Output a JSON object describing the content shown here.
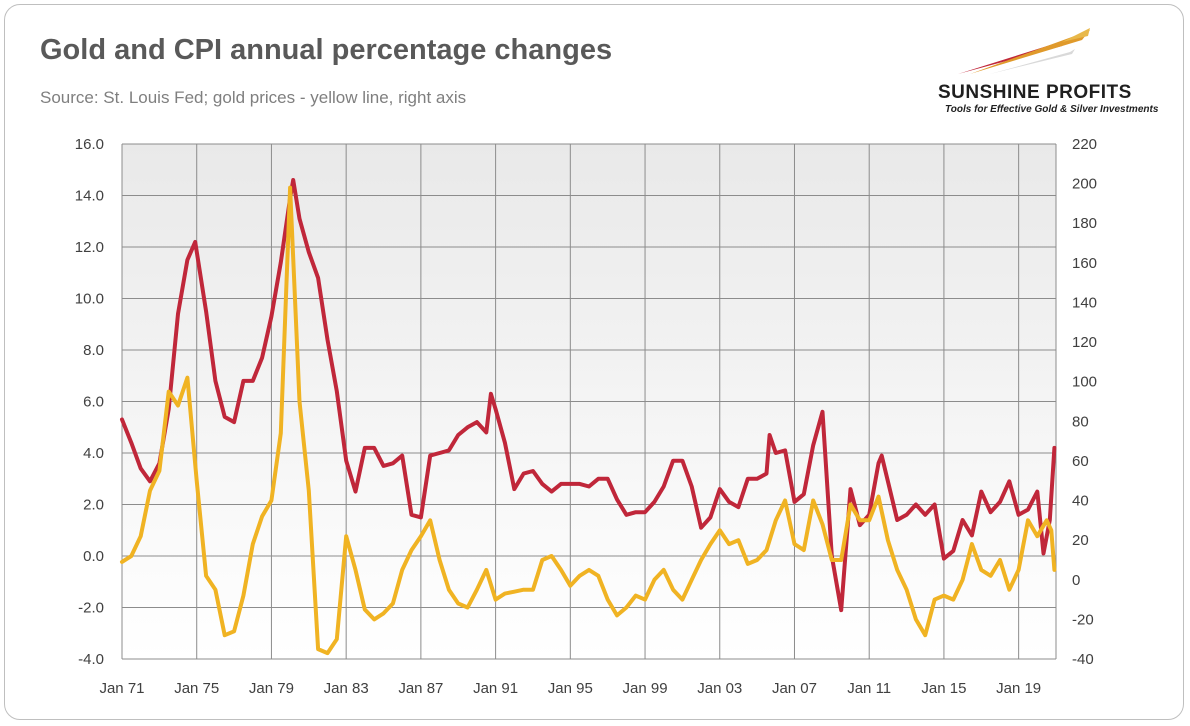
{
  "title": "Gold and CPI annual percentage changes",
  "subtitle": "Source: St. Louis Fed; gold prices - yellow line, right axis",
  "logo": {
    "name": "SUNSHINE PROFITS",
    "tagline": "Tools for Effective Gold & Silver Investments"
  },
  "colors": {
    "cpi": "#c0273a",
    "gold": "#f0b323",
    "grid": "#8c8c8c",
    "plot_bg_top": "#ebebeb",
    "plot_bg_bottom": "#ffffff"
  },
  "chart_data": {
    "type": "line",
    "title": "Gold and CPI annual percentage changes",
    "xlabel": "",
    "ylabel_left": "",
    "ylabel_right": "",
    "x_range": [
      "Jan 71",
      "Dec 20"
    ],
    "x_ticks": [
      "Jan 71",
      "Jan 75",
      "Jan 79",
      "Jan 83",
      "Jan 87",
      "Jan 91",
      "Jan 95",
      "Jan 99",
      "Jan 03",
      "Jan 07",
      "Jan 11",
      "Jan 15",
      "Jan 19"
    ],
    "y_left": {
      "range": [
        -4,
        16
      ],
      "ticks": [
        "-4.0",
        "-2.0",
        "0.0",
        "2.0",
        "4.0",
        "6.0",
        "8.0",
        "10.0",
        "12.0",
        "14.0",
        "16.0"
      ]
    },
    "y_right": {
      "range": [
        -40,
        220
      ],
      "ticks": [
        "-40",
        "-20",
        "0",
        "20",
        "40",
        "60",
        "80",
        "100",
        "120",
        "140",
        "160",
        "180",
        "200",
        "220"
      ]
    },
    "grid": true,
    "legend": "none",
    "series": [
      {
        "axis": "left",
        "color": "#c0273a",
        "points": [
          [
            "Jan 71",
            5.3
          ],
          [
            "Jul 71",
            4.4
          ],
          [
            "Jan 72",
            3.4
          ],
          [
            "Jul 72",
            2.9
          ],
          [
            "Jan 73",
            3.6
          ],
          [
            "Jul 73",
            5.7
          ],
          [
            "Jan 74",
            9.4
          ],
          [
            "Jul 74",
            11.5
          ],
          [
            "Dec 74",
            12.2
          ],
          [
            "Jul 75",
            9.5
          ],
          [
            "Jan 76",
            6.8
          ],
          [
            "Jul 76",
            5.4
          ],
          [
            "Jan 77",
            5.2
          ],
          [
            "Jul 77",
            6.8
          ],
          [
            "Jan 78",
            6.8
          ],
          [
            "Jul 78",
            7.7
          ],
          [
            "Jan 79",
            9.3
          ],
          [
            "Jul 79",
            11.4
          ],
          [
            "Jan 80",
            13.9
          ],
          [
            "Mar 80",
            14.6
          ],
          [
            "Jul 80",
            13.1
          ],
          [
            "Jan 81",
            11.8
          ],
          [
            "Jul 81",
            10.8
          ],
          [
            "Jan 82",
            8.4
          ],
          [
            "Jul 82",
            6.4
          ],
          [
            "Jan 83",
            3.7
          ],
          [
            "Jul 83",
            2.5
          ],
          [
            "Jan 84",
            4.2
          ],
          [
            "Jul 84",
            4.2
          ],
          [
            "Jan 85",
            3.5
          ],
          [
            "Jul 85",
            3.6
          ],
          [
            "Jan 86",
            3.9
          ],
          [
            "Jul 86",
            1.6
          ],
          [
            "Jan 87",
            1.5
          ],
          [
            "Jul 87",
            3.9
          ],
          [
            "Jan 88",
            4.0
          ],
          [
            "Jul 88",
            4.1
          ],
          [
            "Jan 89",
            4.7
          ],
          [
            "Jul 89",
            5.0
          ],
          [
            "Jan 90",
            5.2
          ],
          [
            "Jul 90",
            4.8
          ],
          [
            "Oct 90",
            6.3
          ],
          [
            "Jan 91",
            5.7
          ],
          [
            "Jul 91",
            4.4
          ],
          [
            "Jan 92",
            2.6
          ],
          [
            "Jul 92",
            3.2
          ],
          [
            "Jan 93",
            3.3
          ],
          [
            "Jul 93",
            2.8
          ],
          [
            "Jan 94",
            2.5
          ],
          [
            "Jul 94",
            2.8
          ],
          [
            "Jan 95",
            2.8
          ],
          [
            "Jul 95",
            2.8
          ],
          [
            "Jan 96",
            2.7
          ],
          [
            "Jul 96",
            3.0
          ],
          [
            "Jan 97",
            3.0
          ],
          [
            "Jul 97",
            2.2
          ],
          [
            "Jan 98",
            1.6
          ],
          [
            "Jul 98",
            1.7
          ],
          [
            "Jan 99",
            1.7
          ],
          [
            "Jul 99",
            2.1
          ],
          [
            "Jan 00",
            2.7
          ],
          [
            "Jul 00",
            3.7
          ],
          [
            "Jan 01",
            3.7
          ],
          [
            "Jul 01",
            2.7
          ],
          [
            "Jan 02",
            1.1
          ],
          [
            "Jul 02",
            1.5
          ],
          [
            "Jan 03",
            2.6
          ],
          [
            "Jul 03",
            2.1
          ],
          [
            "Jan 04",
            1.9
          ],
          [
            "Jul 04",
            3.0
          ],
          [
            "Jan 05",
            3.0
          ],
          [
            "Jul 05",
            3.2
          ],
          [
            "Sep 05",
            4.7
          ],
          [
            "Jan 06",
            4.0
          ],
          [
            "Jul 06",
            4.1
          ],
          [
            "Jan 07",
            2.1
          ],
          [
            "Jul 07",
            2.4
          ],
          [
            "Jan 08",
            4.3
          ],
          [
            "Jul 08",
            5.6
          ],
          [
            "Jan 09",
            0.0
          ],
          [
            "Jul 09",
            -2.1
          ],
          [
            "Jan 10",
            2.6
          ],
          [
            "Jul 10",
            1.2
          ],
          [
            "Jan 11",
            1.6
          ],
          [
            "Jul 11",
            3.6
          ],
          [
            "Sep 11",
            3.9
          ],
          [
            "Jan 12",
            2.9
          ],
          [
            "Jul 12",
            1.4
          ],
          [
            "Jan 13",
            1.6
          ],
          [
            "Jul 13",
            2.0
          ],
          [
            "Jan 14",
            1.6
          ],
          [
            "Jul 14",
            2.0
          ],
          [
            "Jan 15",
            -0.1
          ],
          [
            "Jul 15",
            0.2
          ],
          [
            "Jan 16",
            1.4
          ],
          [
            "Jul 16",
            0.8
          ],
          [
            "Jan 17",
            2.5
          ],
          [
            "Jul 17",
            1.7
          ],
          [
            "Jan 18",
            2.1
          ],
          [
            "Jul 18",
            2.9
          ],
          [
            "Jan 19",
            1.6
          ],
          [
            "Jul 19",
            1.8
          ],
          [
            "Jan 20",
            2.5
          ],
          [
            "May 20",
            0.1
          ],
          [
            "Sep 20",
            1.4
          ],
          [
            "Dec 20",
            4.2
          ]
        ]
      },
      {
        "axis": "right",
        "color": "#f0b323",
        "points": [
          [
            "Jan 71",
            9
          ],
          [
            "Jul 71",
            12
          ],
          [
            "Jan 72",
            22
          ],
          [
            "Jul 72",
            45
          ],
          [
            "Jan 73",
            55
          ],
          [
            "Jul 73",
            95
          ],
          [
            "Jan 74",
            88
          ],
          [
            "Jul 74",
            102
          ],
          [
            "Jan 75",
            50
          ],
          [
            "Jul 75",
            2
          ],
          [
            "Jan 76",
            -5
          ],
          [
            "Jul 76",
            -28
          ],
          [
            "Jan 77",
            -26
          ],
          [
            "Jul 77",
            -8
          ],
          [
            "Jan 78",
            18
          ],
          [
            "Jul 78",
            32
          ],
          [
            "Jan 79",
            40
          ],
          [
            "Jul 79",
            74
          ],
          [
            "Jan 80",
            198
          ],
          [
            "Jul 80",
            90
          ],
          [
            "Jan 81",
            45
          ],
          [
            "Jul 81",
            -35
          ],
          [
            "Jan 82",
            -37
          ],
          [
            "Jul 82",
            -30
          ],
          [
            "Jan 83",
            22
          ],
          [
            "Jul 83",
            5
          ],
          [
            "Jan 84",
            -15
          ],
          [
            "Jul 84",
            -20
          ],
          [
            "Jan 85",
            -17
          ],
          [
            "Jul 85",
            -12
          ],
          [
            "Jan 86",
            5
          ],
          [
            "Jul 86",
            15
          ],
          [
            "Jan 87",
            22
          ],
          [
            "Jul 87",
            30
          ],
          [
            "Jan 88",
            10
          ],
          [
            "Jul 88",
            -5
          ],
          [
            "Jan 89",
            -12
          ],
          [
            "Jul 89",
            -14
          ],
          [
            "Jan 90",
            -5
          ],
          [
            "Jul 90",
            5
          ],
          [
            "Jan 91",
            -10
          ],
          [
            "Jul 91",
            -7
          ],
          [
            "Jan 92",
            -6
          ],
          [
            "Jul 92",
            -5
          ],
          [
            "Jan 93",
            -5
          ],
          [
            "Jul 93",
            10
          ],
          [
            "Jan 94",
            12
          ],
          [
            "Jul 94",
            5
          ],
          [
            "Jan 95",
            -3
          ],
          [
            "Jul 95",
            2
          ],
          [
            "Jan 96",
            5
          ],
          [
            "Jul 96",
            2
          ],
          [
            "Jan 97",
            -10
          ],
          [
            "Jul 97",
            -18
          ],
          [
            "Jan 98",
            -14
          ],
          [
            "Jul 98",
            -8
          ],
          [
            "Jan 99",
            -10
          ],
          [
            "Jul 99",
            0
          ],
          [
            "Jan 00",
            5
          ],
          [
            "Jul 00",
            -5
          ],
          [
            "Jan 01",
            -10
          ],
          [
            "Jul 01",
            0
          ],
          [
            "Jan 02",
            10
          ],
          [
            "Jul 02",
            18
          ],
          [
            "Jan 03",
            25
          ],
          [
            "Jul 03",
            18
          ],
          [
            "Jan 04",
            20
          ],
          [
            "Jul 04",
            8
          ],
          [
            "Jan 05",
            10
          ],
          [
            "Jul 05",
            15
          ],
          [
            "Jan 06",
            30
          ],
          [
            "Jul 06",
            40
          ],
          [
            "Jan 07",
            18
          ],
          [
            "Jul 07",
            15
          ],
          [
            "Jan 08",
            40
          ],
          [
            "Jul 08",
            28
          ],
          [
            "Jan 09",
            10
          ],
          [
            "Jul 09",
            10
          ],
          [
            "Jan 10",
            38
          ],
          [
            "Jul 10",
            30
          ],
          [
            "Jan 11",
            30
          ],
          [
            "Jul 11",
            42
          ],
          [
            "Jan 12",
            20
          ],
          [
            "Jul 12",
            5
          ],
          [
            "Jan 13",
            -5
          ],
          [
            "Jul 13",
            -20
          ],
          [
            "Jan 14",
            -28
          ],
          [
            "Jul 14",
            -10
          ],
          [
            "Jan 15",
            -8
          ],
          [
            "Jul 15",
            -10
          ],
          [
            "Jan 16",
            0
          ],
          [
            "Jul 16",
            18
          ],
          [
            "Jan 17",
            5
          ],
          [
            "Jul 17",
            2
          ],
          [
            "Jan 18",
            10
          ],
          [
            "Jul 18",
            -5
          ],
          [
            "Jan 19",
            5
          ],
          [
            "Jul 19",
            30
          ],
          [
            "Jan 20",
            22
          ],
          [
            "Jul 20",
            30
          ],
          [
            "Oct 20",
            25
          ],
          [
            "Dec 20",
            5
          ]
        ]
      }
    ]
  }
}
